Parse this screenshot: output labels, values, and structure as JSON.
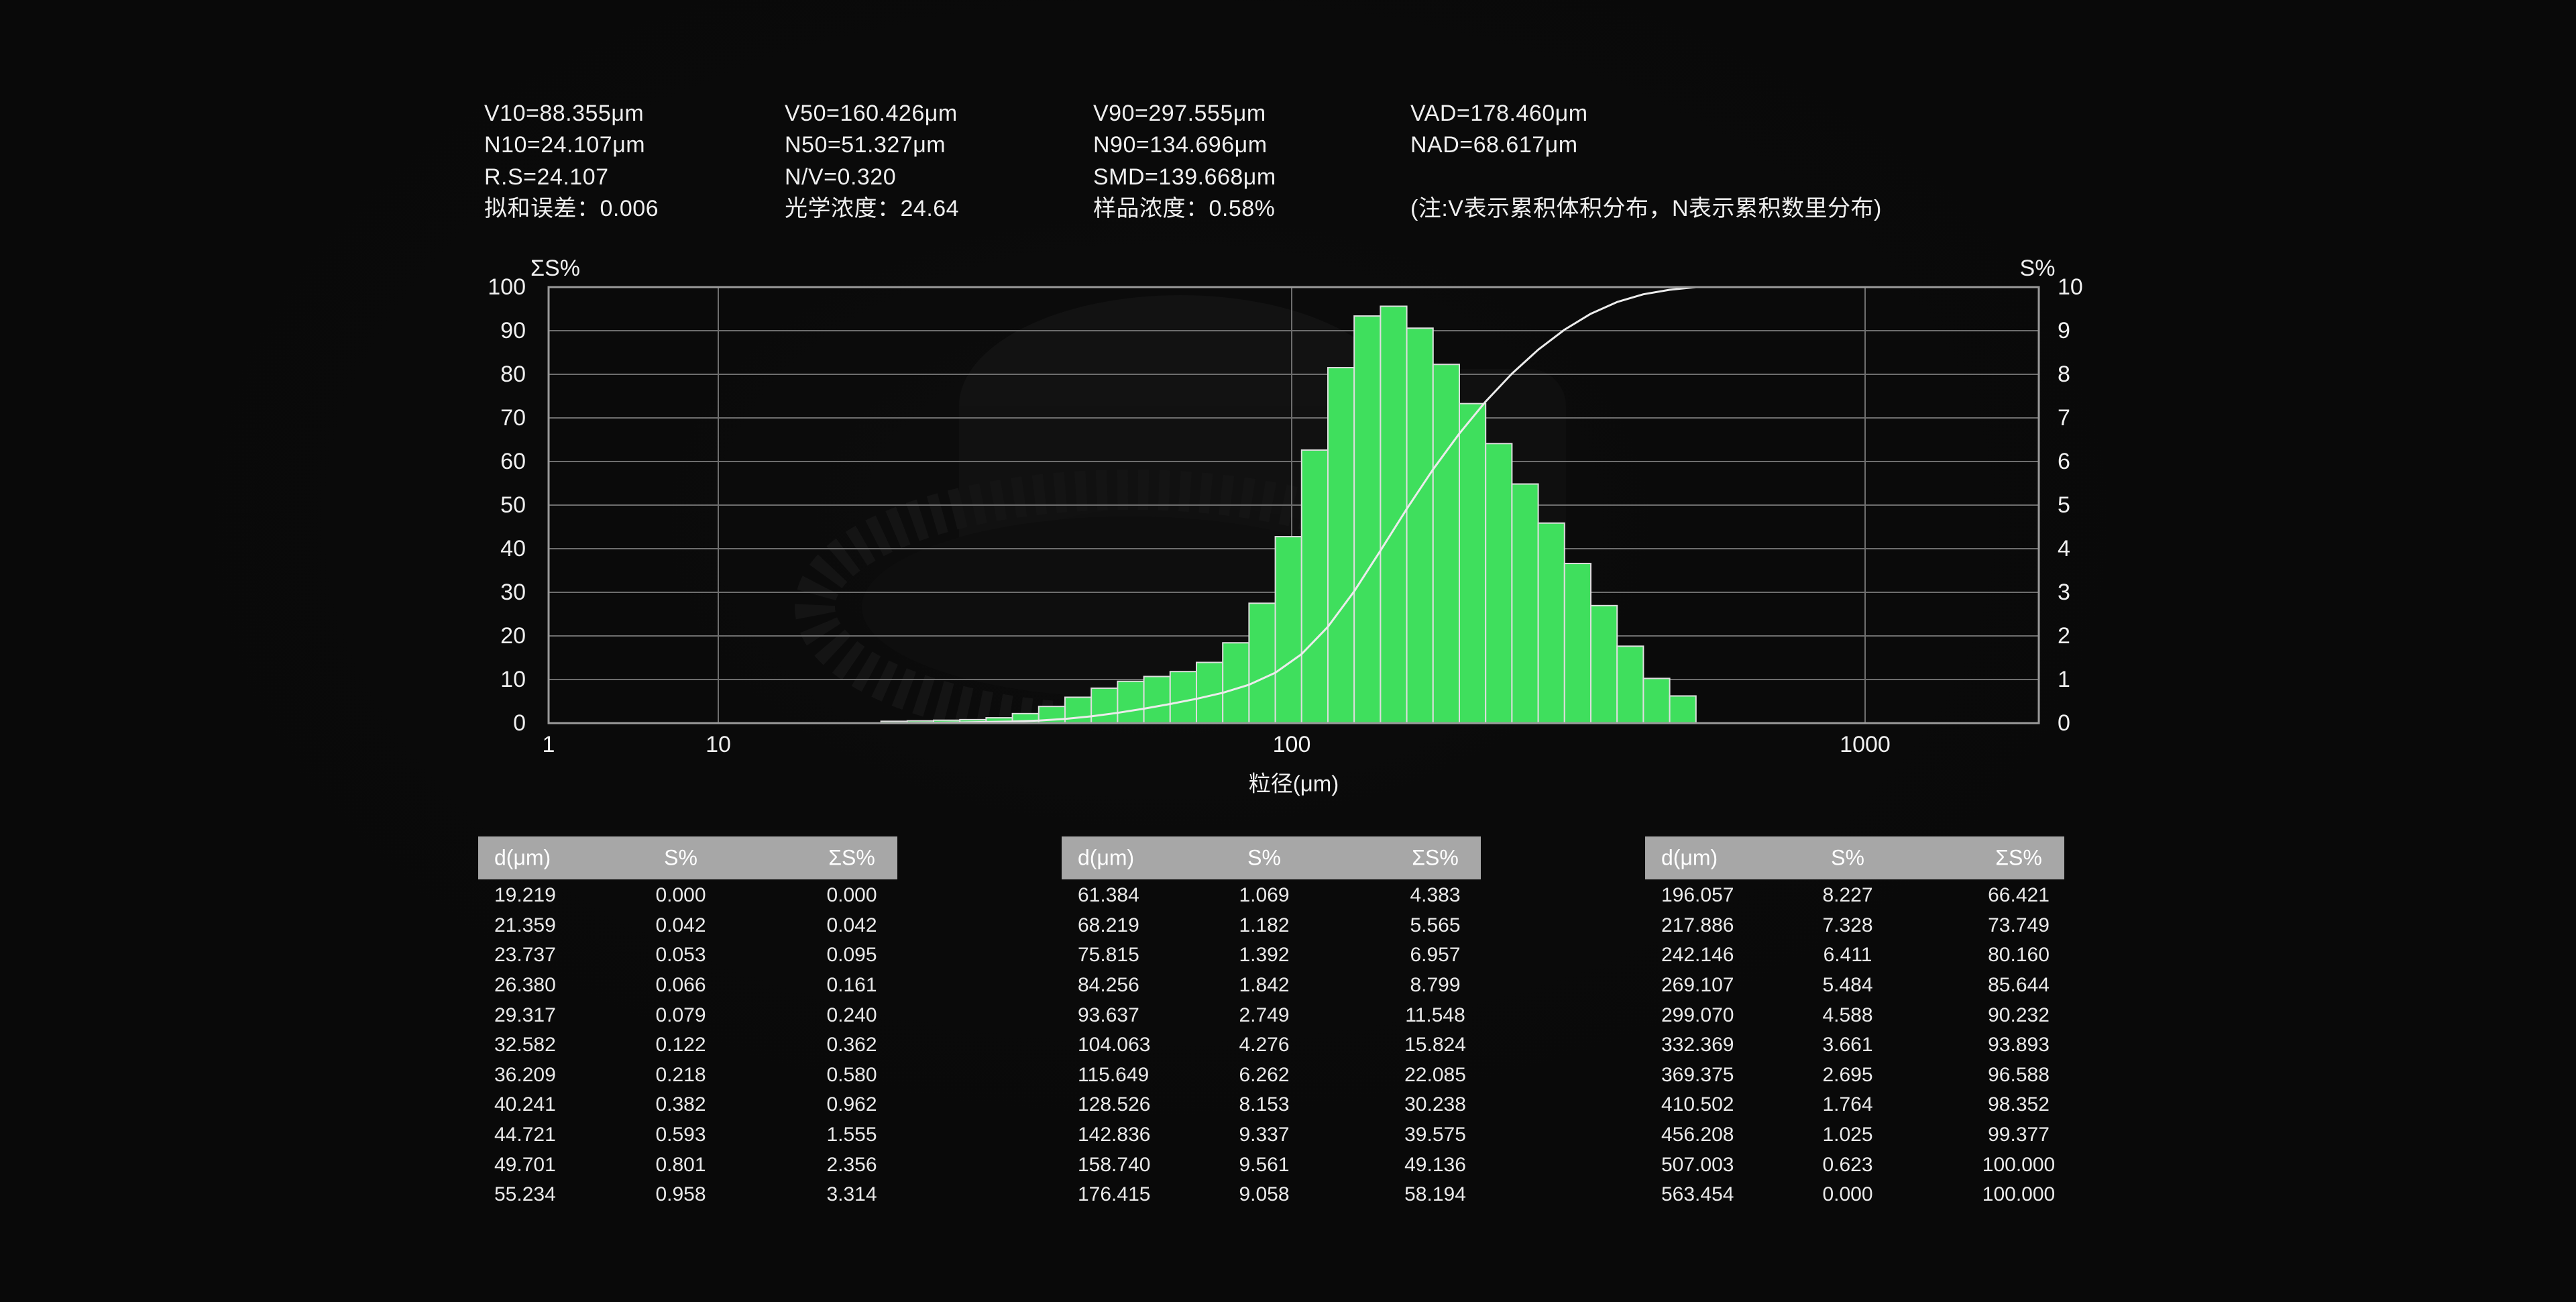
{
  "stats_columns": [
    {
      "lines": [
        "V10=88.355μm",
        "N10=24.107μm",
        "R.S=24.107",
        "拟和误差：0.006"
      ]
    },
    {
      "lines": [
        "V50=160.426μm",
        "N50=51.327μm",
        "N/V=0.320",
        "光学浓度：24.64"
      ]
    },
    {
      "lines": [
        "V90=297.555μm",
        "N90=134.696μm",
        "SMD=139.668μm",
        "样品浓度：0.58%"
      ]
    },
    {
      "lines": [
        "VAD=178.460μm",
        "NAD=68.617μm",
        "",
        "(注:V表示累积体积分布，N表示累积数里分布)"
      ]
    }
  ],
  "chart_data": {
    "type": "bar",
    "title": "",
    "xlabel": "粒径(μm)",
    "x_scale": "log",
    "grid": true,
    "bar_color": "#3fdf5d",
    "bar_edge_color": "#dedede",
    "curve_color": "#ececec",
    "grid_color": "#6e6e6e",
    "border_color": "#9a9a9a",
    "left_axis": {
      "label": "ΣS%",
      "min": 0,
      "max": 100,
      "ticks": [
        100,
        90,
        80,
        70,
        60,
        50,
        40,
        30,
        20,
        10,
        0
      ]
    },
    "right_axis": {
      "label": "S%",
      "min": 0,
      "max": 10,
      "ticks": [
        10,
        9,
        8,
        7,
        6,
        5,
        4,
        3,
        2,
        1,
        0
      ]
    },
    "x_tick_labels": [
      {
        "value": 1,
        "label": "1"
      },
      {
        "value": 10,
        "label": "10"
      },
      {
        "value": 100,
        "label": "100"
      },
      {
        "value": 1000,
        "label": "1000"
      }
    ],
    "bin_edges_um": [
      19.219,
      21.359,
      23.737,
      26.38,
      29.317,
      32.582,
      36.209,
      40.241,
      44.721,
      49.701,
      55.234,
      61.384,
      68.219,
      75.815,
      84.256,
      93.637,
      104.063,
      115.649,
      128.526,
      142.836,
      158.74,
      176.415,
      196.057,
      217.886,
      242.146,
      269.107,
      299.07,
      332.369,
      369.375,
      410.502,
      456.208,
      507.003,
      563.454
    ],
    "bar_heights_S_percent": [
      0.042,
      0.053,
      0.066,
      0.079,
      0.122,
      0.218,
      0.382,
      0.593,
      0.801,
      0.958,
      1.069,
      1.182,
      1.392,
      1.842,
      2.749,
      4.276,
      6.262,
      8.153,
      9.337,
      9.561,
      9.058,
      8.227,
      7.328,
      6.411,
      5.484,
      4.588,
      3.661,
      2.695,
      1.764,
      1.025,
      0.623,
      0.0
    ],
    "cumulative_sigmaS_percent": [
      0.0,
      0.042,
      0.095,
      0.161,
      0.24,
      0.362,
      0.58,
      0.962,
      1.555,
      2.356,
      3.314,
      4.383,
      5.565,
      6.957,
      8.799,
      11.548,
      15.824,
      22.085,
      30.238,
      39.575,
      49.136,
      58.194,
      66.421,
      73.749,
      80.16,
      85.644,
      90.232,
      93.893,
      96.588,
      98.352,
      99.377,
      100.0,
      100.0
    ]
  },
  "tables": {
    "headers": [
      "d(μm)",
      "S%",
      "ΣS%"
    ],
    "groups": [
      {
        "rows": [
          [
            "19.219",
            "0.000",
            "0.000"
          ],
          [
            "21.359",
            "0.042",
            "0.042"
          ],
          [
            "23.737",
            "0.053",
            "0.095"
          ],
          [
            "26.380",
            "0.066",
            "0.161"
          ],
          [
            "29.317",
            "0.079",
            "0.240"
          ],
          [
            "32.582",
            "0.122",
            "0.362"
          ],
          [
            "36.209",
            "0.218",
            "0.580"
          ],
          [
            "40.241",
            "0.382",
            "0.962"
          ],
          [
            "44.721",
            "0.593",
            "1.555"
          ],
          [
            "49.701",
            "0.801",
            "2.356"
          ],
          [
            "55.234",
            "0.958",
            "3.314"
          ]
        ]
      },
      {
        "rows": [
          [
            "61.384",
            "1.069",
            "4.383"
          ],
          [
            "68.219",
            "1.182",
            "5.565"
          ],
          [
            "75.815",
            "1.392",
            "6.957"
          ],
          [
            "84.256",
            "1.842",
            "8.799"
          ],
          [
            "93.637",
            "2.749",
            "11.548"
          ],
          [
            "104.063",
            "4.276",
            "15.824"
          ],
          [
            "115.649",
            "6.262",
            "22.085"
          ],
          [
            "128.526",
            "8.153",
            "30.238"
          ],
          [
            "142.836",
            "9.337",
            "39.575"
          ],
          [
            "158.740",
            "9.561",
            "49.136"
          ],
          [
            "176.415",
            "9.058",
            "58.194"
          ]
        ]
      },
      {
        "rows": [
          [
            "196.057",
            "8.227",
            "66.421"
          ],
          [
            "217.886",
            "7.328",
            "73.749"
          ],
          [
            "242.146",
            "6.411",
            "80.160"
          ],
          [
            "269.107",
            "5.484",
            "85.644"
          ],
          [
            "299.070",
            "4.588",
            "90.232"
          ],
          [
            "332.369",
            "3.661",
            "93.893"
          ],
          [
            "369.375",
            "2.695",
            "96.588"
          ],
          [
            "410.502",
            "1.764",
            "98.352"
          ],
          [
            "456.208",
            "1.025",
            "99.377"
          ],
          [
            "507.003",
            "0.623",
            "100.000"
          ],
          [
            "563.454",
            "0.000",
            "100.000"
          ]
        ]
      }
    ]
  }
}
